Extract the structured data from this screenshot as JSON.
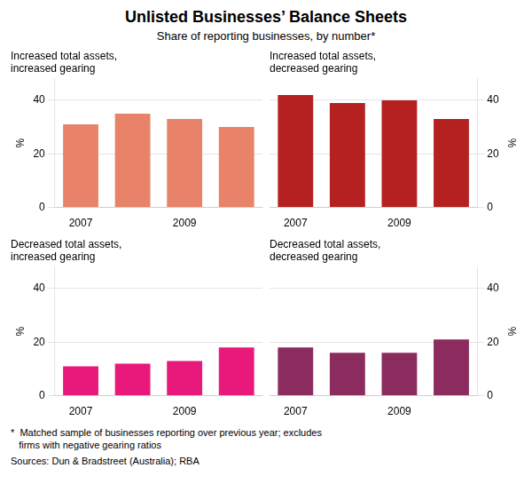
{
  "title": "Unlisted Businesses’ Balance Sheets",
  "subtitle": "Share of reporting businesses, by number*",
  "footnote": "*  Matched sample of businesses reporting over previous year; excludes\n   firms with negative gearing ratios",
  "sources": "Sources: Dun & Bradstreet (Australia); RBA",
  "chart_data": [
    {
      "type": "bar",
      "title": "Increased total assets,\nincreased gearing",
      "categories": [
        "2007",
        null,
        "2009",
        null
      ],
      "values": [
        31,
        35,
        33,
        30
      ],
      "color": "#E8836A",
      "ylabel": "%",
      "ylim": [
        0,
        48
      ],
      "yticks": [
        0,
        20,
        40
      ],
      "grid": true
    },
    {
      "type": "bar",
      "title": "Increased total assets,\ndecreased gearing",
      "categories": [
        "2007",
        null,
        "2009",
        null
      ],
      "values": [
        42,
        39,
        40,
        33
      ],
      "color": "#B52020",
      "ylabel": "%",
      "ylim": [
        0,
        48
      ],
      "yticks": [
        0,
        20,
        40
      ],
      "grid": true
    },
    {
      "type": "bar",
      "title": "Decreased total assets,\nincreased gearing",
      "categories": [
        "2007",
        null,
        "2009",
        null
      ],
      "values": [
        11,
        12,
        13,
        18
      ],
      "color": "#E8197A",
      "ylabel": "%",
      "ylim": [
        0,
        48
      ],
      "yticks": [
        0,
        20,
        40
      ],
      "grid": true
    },
    {
      "type": "bar",
      "title": "Decreased total assets,\ndecreased gearing",
      "categories": [
        "2007",
        null,
        "2009",
        null
      ],
      "values": [
        18,
        16,
        16,
        21
      ],
      "color": "#8B2B5E",
      "ylabel": "%",
      "ylim": [
        0,
        48
      ],
      "yticks": [
        0,
        20,
        40
      ],
      "grid": true
    }
  ]
}
